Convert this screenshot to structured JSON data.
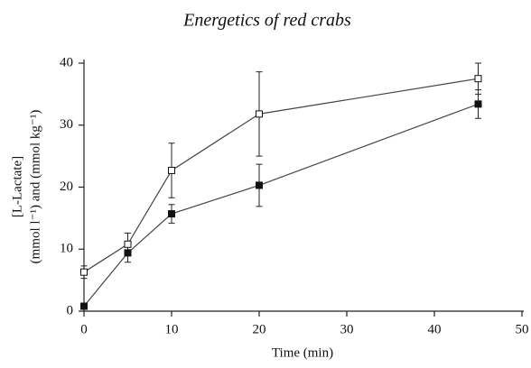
{
  "chart_data": {
    "type": "line",
    "title": "Energetics of red crabs",
    "x_label": "Time (min)",
    "y_label": [
      "[L-Lactate]",
      "(mmol l⁻¹) and (mmol kg⁻¹)"
    ],
    "x": [
      0,
      5,
      10,
      20,
      45
    ],
    "series": [
      {
        "marker": "open",
        "color": "#444444",
        "values": [
          6.3,
          10.8,
          22.7,
          31.8,
          37.5
        ],
        "errors": [
          1.0,
          1.8,
          4.4,
          6.8,
          2.5
        ]
      },
      {
        "marker": "filled",
        "color": "#444444",
        "values": [
          0.8,
          9.4,
          15.7,
          20.3,
          33.4
        ],
        "errors": [
          0.3,
          1.5,
          1.5,
          3.4,
          2.3
        ]
      }
    ],
    "xlim": [
      0,
      50
    ],
    "xticks": [
      0,
      10,
      20,
      30,
      40,
      50
    ],
    "ylim": [
      0,
      40
    ],
    "yticks": [
      0,
      10,
      20,
      30,
      40
    ],
    "grid": false
  }
}
